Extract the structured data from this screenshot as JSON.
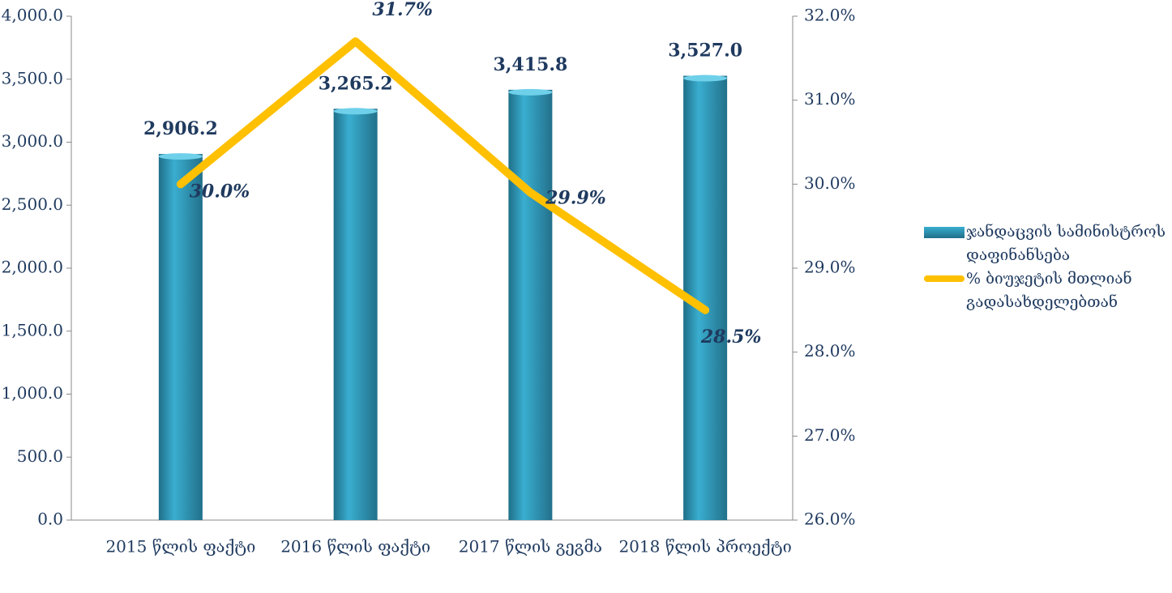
{
  "chart_data": {
    "type": "bar_line",
    "categories": [
      "2015 წლის ფაქტი",
      "2016 წლის ფაქტი",
      "2017 წლის გეგმა",
      "2018 წლის პროექტი"
    ],
    "series": [
      {
        "name": "ჯანდაცვის სამინისტროს დაფინანსება",
        "color": "#2f93b3",
        "type": "bar",
        "values": [
          2906.2,
          3265.2,
          3415.8,
          3527.0
        ],
        "value_labels": [
          "2,906.2",
          "3,265.2",
          "3,415.8",
          "3,527.0"
        ]
      },
      {
        "name": "% ბიუჯეტის მთლიან გადასახდელებთან",
        "color": "#ffc000",
        "type": "line",
        "axis": "y2",
        "values": [
          30.0,
          31.7,
          29.9,
          28.5
        ],
        "value_labels": [
          "30.0%",
          "31.7%",
          "29.9%",
          "28.5%"
        ]
      }
    ],
    "ylim": [
      0,
      4000
    ],
    "yticks": [
      {
        "value": 0,
        "label": "0.0"
      },
      {
        "value": 500,
        "label": "500.0"
      },
      {
        "value": 1000,
        "label": "1,000.0"
      },
      {
        "value": 1500,
        "label": "1,500.0"
      },
      {
        "value": 2000,
        "label": "2,000.0"
      },
      {
        "value": 2500,
        "label": "2,500.0"
      },
      {
        "value": 3000,
        "label": "3,000.0"
      },
      {
        "value": 3500,
        "label": "3,500.0"
      },
      {
        "value": 4000,
        "label": "4,000.0"
      }
    ],
    "y2lim": [
      26,
      32
    ],
    "y2ticks": [
      {
        "value": 26,
        "label": "26.0%"
      },
      {
        "value": 27,
        "label": "27.0%"
      },
      {
        "value": 28,
        "label": "28.0%"
      },
      {
        "value": 29,
        "label": "29.0%"
      },
      {
        "value": 30,
        "label": "30.0%"
      },
      {
        "value": 31,
        "label": "31.0%"
      },
      {
        "value": 32,
        "label": "32.0%"
      }
    ],
    "legend": "right"
  }
}
